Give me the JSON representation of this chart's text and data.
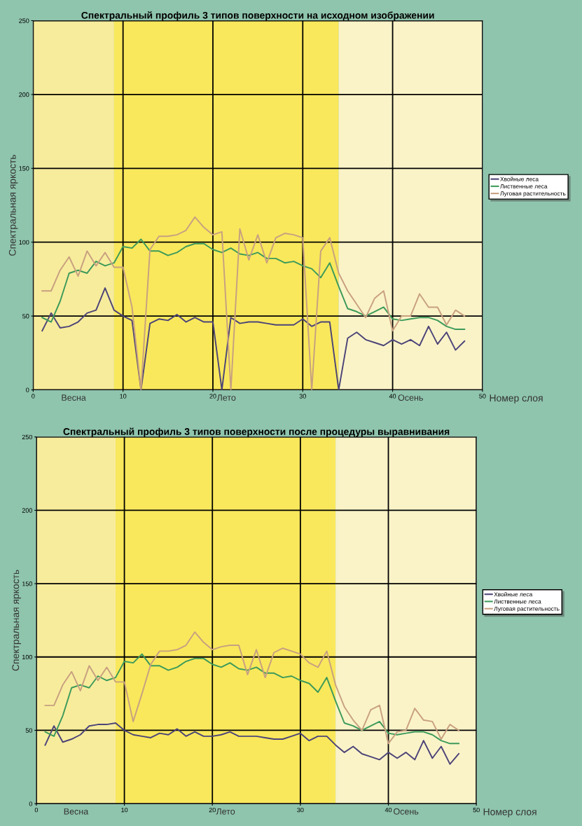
{
  "chart_data": [
    {
      "type": "line",
      "title": "Спектральный профиль 3 типов поверхности на исходном изображении",
      "xlabel": "Номер слоя",
      "ylabel": "Спектральная яркость",
      "x": [
        1,
        2,
        3,
        4,
        5,
        6,
        7,
        8,
        9,
        10,
        11,
        12,
        13,
        14,
        15,
        16,
        17,
        18,
        19,
        20,
        21,
        22,
        23,
        24,
        25,
        26,
        27,
        28,
        29,
        30,
        31,
        32,
        33,
        34,
        35,
        36,
        37,
        38,
        39,
        40,
        41,
        42,
        43,
        44,
        45,
        46,
        47,
        48
      ],
      "series": [
        {
          "name": "Хвойные леса",
          "color": "#4c4478",
          "values": [
            40,
            52,
            42,
            43,
            46,
            52,
            54,
            69,
            54,
            50,
            47,
            0,
            45,
            48,
            47,
            51,
            46,
            49,
            46,
            46,
            0,
            49,
            45,
            46,
            46,
            45,
            44,
            44,
            44,
            48,
            43,
            46,
            46,
            0,
            35,
            39,
            34,
            32,
            30,
            34,
            31,
            34,
            30,
            43,
            31,
            39,
            27,
            33
          ]
        },
        {
          "name": "Лиственные леса",
          "color": "#3c9a5a",
          "values": [
            49,
            46,
            60,
            79,
            81,
            79,
            87,
            84,
            86,
            97,
            96,
            102,
            94,
            94,
            91,
            93,
            97,
            99,
            99,
            95,
            93,
            96,
            92,
            91,
            93,
            89,
            89,
            86,
            87,
            84,
            82,
            76,
            86,
            70,
            55,
            53,
            50,
            53,
            56,
            48,
            47,
            48,
            49,
            49,
            47,
            43,
            41,
            41
          ]
        },
        {
          "name": "Луговая растительность",
          "color": "#c8a080",
          "values": [
            67,
            67,
            81,
            90,
            77,
            94,
            84,
            93,
            83,
            83,
            56,
            0,
            95,
            104,
            104,
            105,
            108,
            117,
            110,
            105,
            107,
            0,
            109,
            88,
            105,
            86,
            103,
            106,
            105,
            103,
            0,
            94,
            103,
            79,
            67,
            58,
            49,
            62,
            67,
            40,
            50,
            50,
            65,
            56,
            56,
            44,
            54,
            50
          ]
        }
      ],
      "xlim": [
        0,
        50
      ],
      "xticks": [
        0,
        10,
        20,
        30,
        40,
        50
      ],
      "ylim": [
        0,
        250
      ],
      "yticks": [
        0,
        50,
        100,
        150,
        200,
        250
      ],
      "grid": true,
      "legend": "right",
      "marker": "none",
      "line_style": "solid",
      "bands": [
        {
          "axis": "x",
          "from": 0,
          "to": 9,
          "label": "Весна",
          "color": "#f7ec9c"
        },
        {
          "axis": "x",
          "from": 9,
          "to": 34,
          "label": "Лето",
          "color": "#f9e85c"
        },
        {
          "axis": "x",
          "from": 34,
          "to": 50,
          "label": "Осень",
          "color": "#faf3c8"
        }
      ]
    },
    {
      "type": "line",
      "title": "Спектральный профиль 3 типов поверхности после процедуры выравнивания",
      "xlabel": "Номер слоя",
      "ylabel": "Спектральная яркость",
      "x": [
        1,
        2,
        3,
        4,
        5,
        6,
        7,
        8,
        9,
        10,
        11,
        12,
        13,
        14,
        15,
        16,
        17,
        18,
        19,
        20,
        21,
        22,
        23,
        24,
        25,
        26,
        27,
        28,
        29,
        30,
        31,
        32,
        33,
        34,
        35,
        36,
        37,
        38,
        39,
        40,
        41,
        42,
        43,
        44,
        45,
        46,
        47,
        48
      ],
      "series": [
        {
          "name": "Хвойные леса",
          "color": "#4c4478",
          "values": [
            40,
            53,
            42,
            44,
            47,
            53,
            54,
            54,
            55,
            50,
            47,
            46,
            45,
            48,
            47,
            51,
            46,
            49,
            46,
            46,
            47,
            49,
            46,
            46,
            46,
            45,
            44,
            44,
            46,
            48,
            43,
            46,
            46,
            40,
            35,
            39,
            34,
            32,
            30,
            35,
            31,
            35,
            30,
            43,
            31,
            39,
            27,
            34
          ]
        },
        {
          "name": "Лиственные леса",
          "color": "#3c9a5a",
          "values": [
            49,
            46,
            60,
            79,
            81,
            79,
            87,
            84,
            86,
            97,
            96,
            102,
            94,
            94,
            91,
            93,
            97,
            99,
            99,
            95,
            93,
            96,
            92,
            91,
            93,
            89,
            89,
            86,
            87,
            84,
            82,
            76,
            86,
            70,
            55,
            53,
            50,
            53,
            56,
            48,
            47,
            48,
            49,
            49,
            47,
            43,
            41,
            41
          ]
        },
        {
          "name": "Луговая растительность",
          "color": "#c8a080",
          "values": [
            67,
            67,
            81,
            90,
            77,
            94,
            84,
            93,
            83,
            83,
            56,
            75,
            95,
            104,
            104,
            105,
            108,
            117,
            110,
            105,
            107,
            108,
            108,
            88,
            105,
            86,
            103,
            106,
            104,
            102,
            96,
            93,
            104,
            81,
            66,
            57,
            50,
            64,
            67,
            41,
            49,
            50,
            65,
            57,
            56,
            44,
            54,
            50
          ]
        }
      ],
      "xlim": [
        0,
        50
      ],
      "xticks": [
        0,
        10,
        20,
        30,
        40,
        50
      ],
      "ylim": [
        0,
        250
      ],
      "yticks": [
        0,
        50,
        100,
        150,
        200,
        250
      ],
      "grid": true,
      "legend": "right",
      "marker": "none",
      "line_style": "solid",
      "bands": [
        {
          "axis": "x",
          "from": 0,
          "to": 9,
          "label": "Весна",
          "color": "#f7ec9c"
        },
        {
          "axis": "x",
          "from": 9,
          "to": 34,
          "label": "Лето",
          "color": "#f9e85c"
        },
        {
          "axis": "x",
          "from": 34,
          "to": 50,
          "label": "Осень",
          "color": "#faf3c8"
        }
      ]
    }
  ]
}
